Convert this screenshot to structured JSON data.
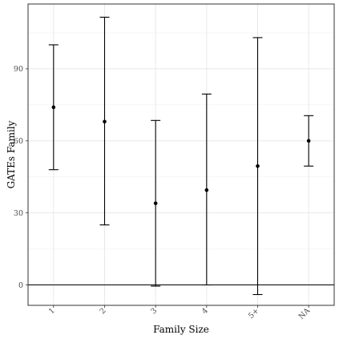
{
  "chart_data": {
    "type": "errorbar",
    "title": "",
    "xlabel": "Family Size",
    "ylabel": "GATEs Family",
    "categories": [
      "1",
      "2",
      "3",
      "4",
      "5+",
      "NA"
    ],
    "series": [
      {
        "estimate": [
          74,
          68,
          34,
          39.5,
          49.5,
          60
        ],
        "lower": [
          48,
          25,
          -0.5,
          0,
          -4,
          49.5
        ],
        "upper": [
          100,
          111.5,
          68.5,
          79.5,
          103,
          70.5
        ]
      }
    ],
    "y_ticks": [
      0,
      30,
      60,
      90
    ],
    "ylim": [
      -8.5,
      117
    ],
    "reference_line": 0,
    "grid": true,
    "x_tick_rotation": "45-degree"
  }
}
